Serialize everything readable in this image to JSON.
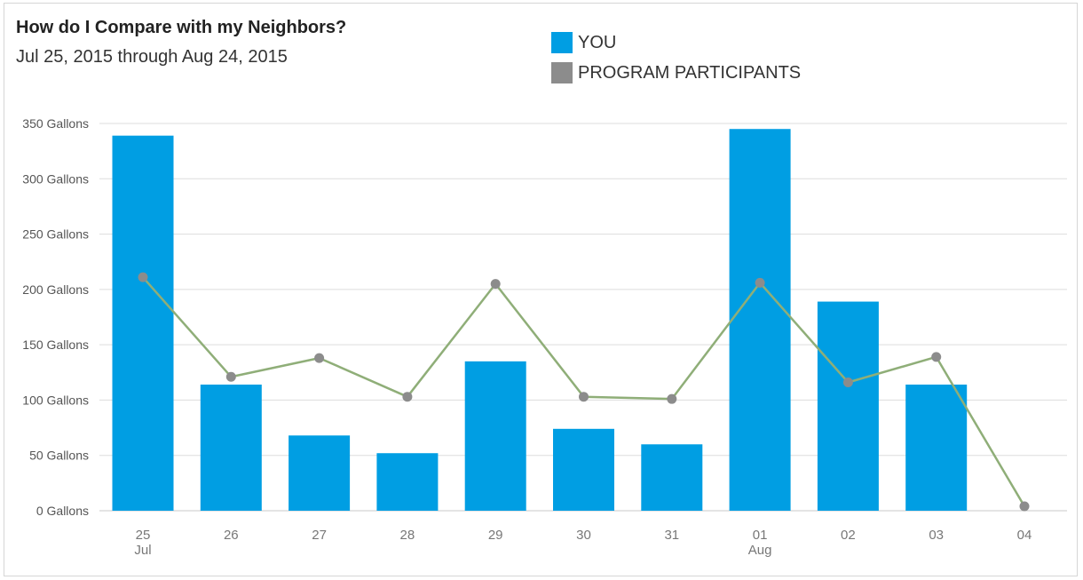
{
  "chart_data": {
    "type": "bar",
    "title": "How do I Compare with my Neighbors?",
    "subtitle": "Jul 25, 2015 through Aug 24, 2015",
    "categories": [
      "25",
      "26",
      "27",
      "28",
      "29",
      "30",
      "31",
      "01",
      "02",
      "03",
      "04"
    ],
    "category_sublabels": [
      "Jul",
      "",
      "",
      "",
      "",
      "",
      "",
      "Aug",
      "",
      "",
      ""
    ],
    "y_ticks": [
      "0 Gallons",
      "50 Gallons",
      "100 Gallons",
      "150 Gallons",
      "200 Gallons",
      "250 Gallons",
      "300 Gallons",
      "350 Gallons"
    ],
    "ylim": [
      0,
      350
    ],
    "y_tick_step": 50,
    "grid": true,
    "legend_position": "top-center",
    "series": [
      {
        "name": "YOU",
        "type": "bar",
        "color": "#009ee3",
        "values": [
          339,
          114,
          68,
          52,
          135,
          74,
          60,
          345,
          189,
          114,
          null
        ]
      },
      {
        "name": "PROGRAM PARTICIPANTS",
        "type": "line",
        "color": "#8c8c8c",
        "line_color": "#8fae78",
        "values": [
          211,
          121,
          138,
          103,
          205,
          103,
          101,
          206,
          116,
          139,
          4
        ]
      }
    ]
  }
}
